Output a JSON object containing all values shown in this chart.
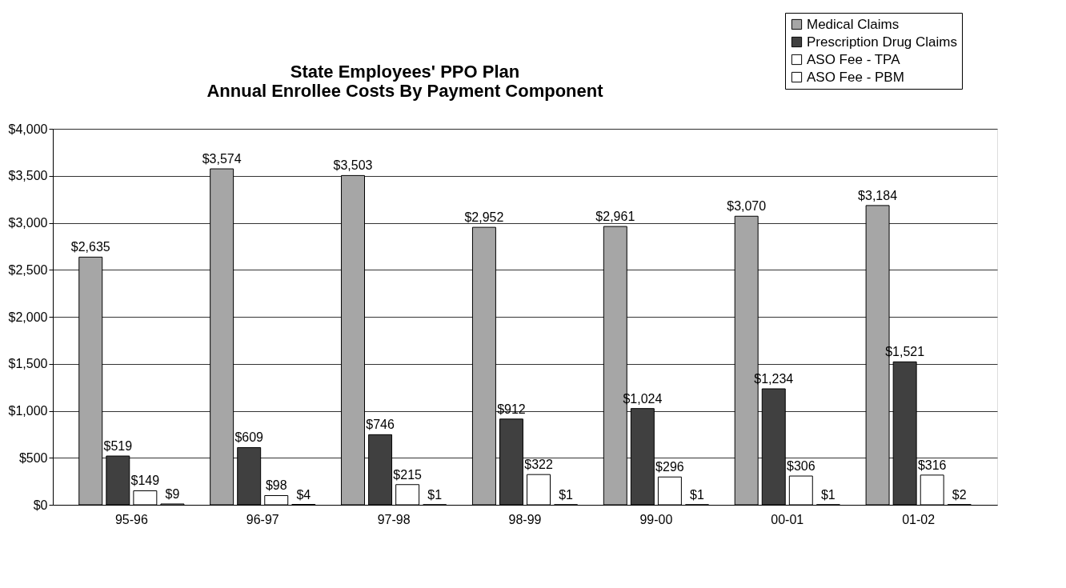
{
  "chart_data": {
    "type": "bar",
    "title": [
      "State Employees' PPO Plan",
      "Annual Enrollee Costs By Payment Component"
    ],
    "categories": [
      "95-96",
      "96-97",
      "97-98",
      "98-99",
      "99-00",
      "00-01",
      "01-02"
    ],
    "series": [
      {
        "name": "Medical Claims",
        "color": "#a6a6a6",
        "values": [
          2635,
          3574,
          3503,
          2952,
          2961,
          3070,
          3184
        ],
        "value_labels": [
          "$2,635",
          "$3,574",
          "$3,503",
          "$2,952",
          "$2,961",
          "$3,070",
          "$3,184"
        ]
      },
      {
        "name": "Prescription Drug Claims",
        "color": "#404040",
        "values": [
          519,
          609,
          746,
          912,
          1024,
          1234,
          1521
        ],
        "value_labels": [
          "$519",
          "$609",
          "$746",
          "$912",
          "$1,024",
          "$1,234",
          "$1,521"
        ]
      },
      {
        "name": "ASO Fee - TPA",
        "color": "#ffffff",
        "values": [
          149,
          98,
          215,
          322,
          296,
          306,
          316
        ],
        "value_labels": [
          "$149",
          "$98",
          "$215",
          "$322",
          "$296",
          "$306",
          "$316"
        ]
      },
      {
        "name": "ASO Fee - PBM",
        "color": "#ffffff",
        "values": [
          9,
          4,
          1,
          1,
          1,
          1,
          2
        ],
        "value_labels": [
          "$9",
          "$4",
          "$1",
          "$1",
          "$1",
          "$1",
          "$2"
        ]
      }
    ],
    "ylim": [
      0,
      4000
    ],
    "yticks": [
      {
        "value": 0,
        "label": "$0"
      },
      {
        "value": 500,
        "label": "$500"
      },
      {
        "value": 1000,
        "label": "$1,000"
      },
      {
        "value": 1500,
        "label": "$1,500"
      },
      {
        "value": 2000,
        "label": "$2,000"
      },
      {
        "value": 2500,
        "label": "$2,500"
      },
      {
        "value": 3000,
        "label": "$3,000"
      },
      {
        "value": 3500,
        "label": "$3,500"
      },
      {
        "value": 4000,
        "label": "$4,000"
      }
    ],
    "grid": "y",
    "legend": "top right"
  }
}
